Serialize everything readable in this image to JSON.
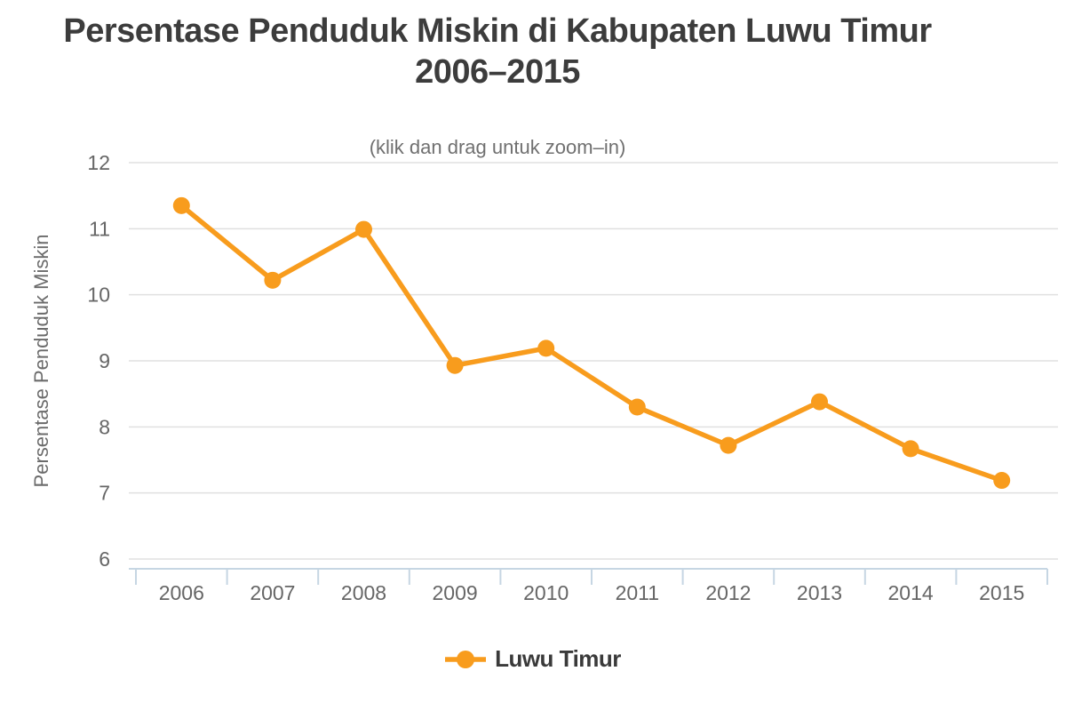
{
  "header": {
    "title_line1": "Persentase Penduduk Miskin di Kabupaten Luwu Timur",
    "title_line2": "2006–2015",
    "subtitle": "(klik dan drag untuk zoom–in)"
  },
  "y_axis": {
    "title": "Persentase Penduduk Miskin"
  },
  "legend": {
    "label": "Luwu Timur"
  },
  "colors": {
    "series": "#F89C1D",
    "title_text": "#3C3C3C",
    "subtitle_text": "#707070",
    "axis_text": "#666666",
    "grid_line": "#E0E0E0",
    "axis_line": "#C6D6E3",
    "background": "#FFFFFF"
  },
  "chart_data": {
    "type": "line",
    "title": "Persentase Penduduk Miskin di Kabupaten Luwu Timur 2006–2015",
    "subtitle": "(klik dan drag untuk zoom–in)",
    "categories": [
      "2006",
      "2007",
      "2008",
      "2009",
      "2010",
      "2011",
      "2012",
      "2013",
      "2014",
      "2015"
    ],
    "series": [
      {
        "name": "Luwu Timur",
        "color": "#F89C1D",
        "values": [
          11.35,
          10.22,
          10.99,
          8.93,
          9.19,
          8.3,
          7.72,
          8.38,
          7.67,
          7.19
        ]
      }
    ],
    "xlabel": "",
    "ylabel": "Persentase Penduduk Miskin",
    "ylim": [
      6,
      12
    ],
    "yticks": [
      6,
      7,
      8,
      9,
      10,
      11,
      12
    ],
    "grid": "horizontal",
    "legend_position": "bottom",
    "marker": "circle"
  }
}
